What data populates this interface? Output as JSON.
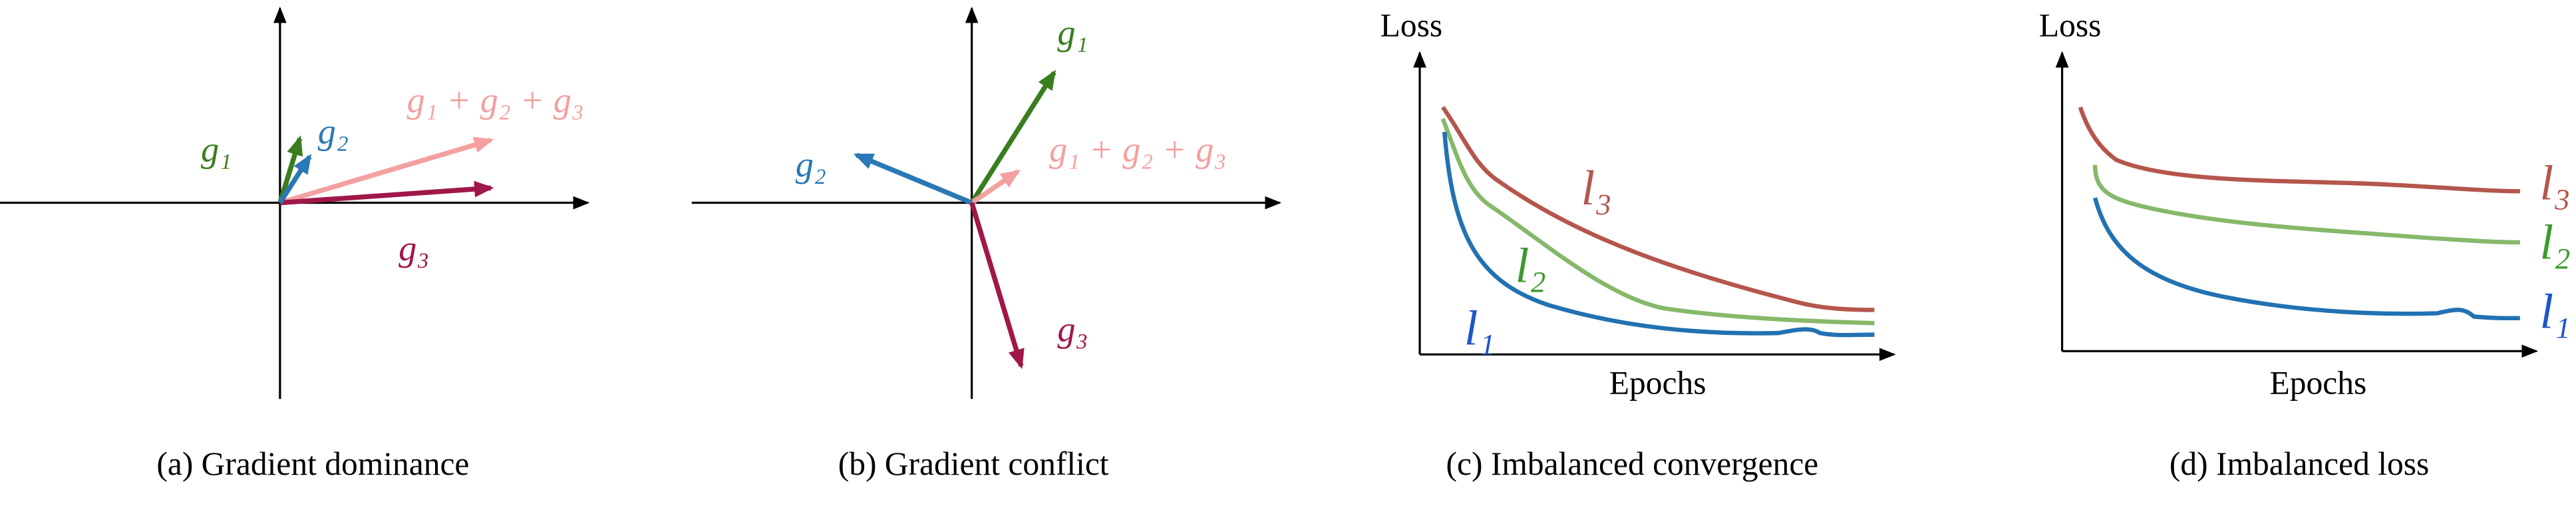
{
  "panels": [
    {
      "caption": "(a) Gradient dominance",
      "labels": [
        "g₁",
        "g₂",
        "g₁ + g₂ + g₃",
        "g₃"
      ]
    },
    {
      "caption": "(b) Gradient conflict",
      "labels": [
        "g₁",
        "g₂",
        "g₁ + g₂ + g₃",
        "g₃"
      ]
    },
    {
      "caption": "(c) Imbalanced convergence",
      "y_label": "Loss",
      "x_label": "Epochs",
      "labels": [
        "l₃",
        "l₂",
        "l₁"
      ]
    },
    {
      "caption": "(d) Imbalanced loss",
      "y_label": "Loss",
      "x_label": "Epochs",
      "labels": [
        "l₃",
        "l₂",
        "l₁"
      ]
    }
  ]
}
